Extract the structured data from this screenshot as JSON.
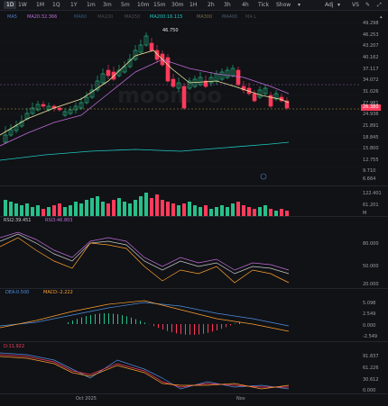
{
  "toolbar": {
    "timeframes": [
      "1D",
      "1W",
      "1M",
      "1Q",
      "1Y",
      "1m",
      "3m",
      "5m",
      "10m",
      "15m",
      "30m",
      "1H",
      "2h",
      "3h",
      "4h",
      "Tick"
    ],
    "active": "1D",
    "show_label": "Show",
    "adj_label": "Adj",
    "vs_label": "VS"
  },
  "legend": {
    "ma_short": "MA20:32.366",
    "ma_long": "MA200:16.115"
  },
  "price_axis": {
    "ticks": [
      "49.298",
      "46.253",
      "43.207",
      "40.162",
      "37.117",
      "34.072",
      "31.026",
      "27.981",
      "24.936",
      "21.891",
      "18.845",
      "15.800",
      "12.755",
      "9.710",
      "6.664"
    ],
    "current_price": "26.380",
    "high_label": "46.750"
  },
  "volume": {
    "ticks": [
      "122.401",
      "61.201",
      "M"
    ]
  },
  "rsi": {
    "legend_a": "RSI2:39.451",
    "legend_b": "RSI3:46.803",
    "ticks": [
      "80.000",
      "50.000",
      "20.000"
    ]
  },
  "macd": {
    "legend_a": "DEA:0.500",
    "legend_b": "MACD:-2.222",
    "ticks": [
      "5.098",
      "2.549",
      "0.000",
      "-2.549"
    ]
  },
  "kdj": {
    "legend_a": "D:11.922",
    "ticks": [
      "91.837",
      "61.226",
      "30.612",
      "0.000"
    ]
  },
  "x_axis": {
    "labels": [
      "Oct 2025",
      "Nov"
    ]
  },
  "colors": {
    "up": "#28c08a",
    "down": "#ff3b5c",
    "ma20": "#c06bd6",
    "ma200": "#1fc7c0",
    "yellow": "#f0e6a0",
    "orange": "#ff9f2e"
  }
}
